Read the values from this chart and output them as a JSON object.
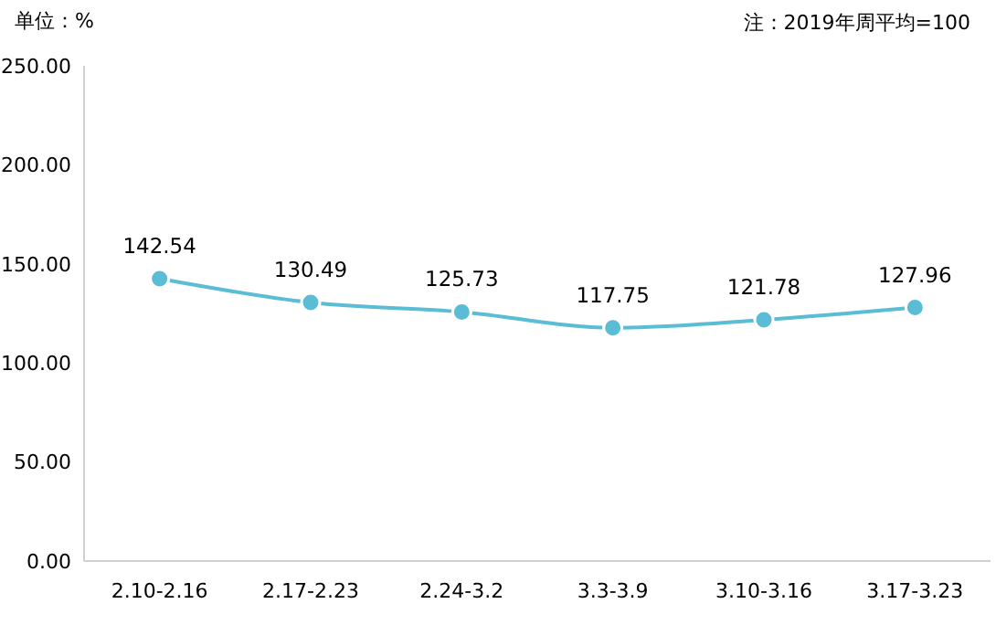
{
  "chart_data": {
    "type": "line",
    "ylabel": "单位：%",
    "annotations": [
      "注：2019年周平均=100"
    ],
    "categories": [
      "2.10-2.16",
      "2.17-2.23",
      "2.24-3.2",
      "3.3-3.9",
      "3.10-3.16",
      "3.17-3.23"
    ],
    "series": [
      {
        "color": "#5bbcd6",
        "values": [
          142.54,
          130.49,
          125.73,
          117.75,
          121.78,
          127.96
        ]
      }
    ],
    "ylim": [
      0,
      250
    ],
    "yticks": [
      {
        "value": 0,
        "label": "0.00"
      },
      {
        "value": 50,
        "label": "50.00"
      },
      {
        "value": 100,
        "label": "100.00"
      },
      {
        "value": 150,
        "label": "150.00"
      },
      {
        "value": 200,
        "label": "200.00"
      },
      {
        "value": 250,
        "label": "250.00"
      }
    ],
    "grid": false,
    "marker": "circle",
    "line_style": "solid",
    "data_labels": true
  }
}
